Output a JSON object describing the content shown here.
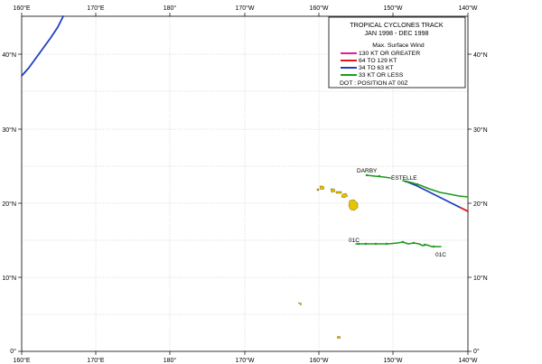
{
  "legend": {
    "title_line1": "TROPICAL CYCLONES TRACK",
    "title_line2": "JAN 1998  -  DEC 1998",
    "subtitle": "Max. Surface Wind",
    "items": [
      {
        "label": "130 KT OR GREATER",
        "color": "#e0209a"
      },
      {
        "label": "64 TO 129 KT",
        "color": "#e51b1b"
      },
      {
        "label": "34 TO 63 KT",
        "color": "#1f3fbf"
      },
      {
        "label": "33 KT OR LESS",
        "color": "#1d9a1d"
      }
    ],
    "dot_note": "DOT : POSITION AT 00Z"
  },
  "axes": {
    "x_ticks": [
      "160°E",
      "170°E",
      "180°",
      "170°W",
      "160°W",
      "150°W",
      "140°W"
    ],
    "y_ticks": [
      "0°",
      "10°N",
      "20°N",
      "30°N",
      "40°N"
    ]
  },
  "storms": [
    {
      "name": "DARBY"
    },
    {
      "name": "ESTELLE"
    },
    {
      "name": "01C"
    },
    {
      "name": "01C"
    }
  ],
  "colors": {
    "land": "#e8c300",
    "grid": "#b8b8b8"
  }
}
